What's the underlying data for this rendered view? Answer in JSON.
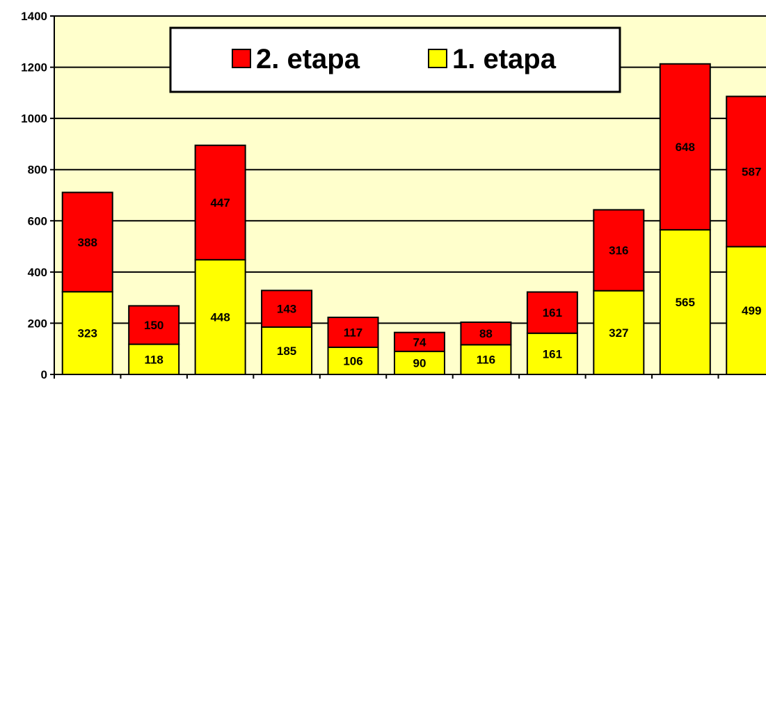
{
  "chart_data": {
    "type": "bar",
    "stacked": true,
    "categories": [
      "",
      "",
      "",
      "",
      "",
      "",
      "",
      "",
      "",
      "",
      ""
    ],
    "series": [
      {
        "name": "1. etapa",
        "color": "#ffff00",
        "values": [
          323,
          118,
          448,
          185,
          106,
          90,
          116,
          161,
          327,
          565,
          499
        ]
      },
      {
        "name": "2. etapa",
        "color": "#ff0000",
        "values": [
          388,
          150,
          447,
          143,
          117,
          74,
          88,
          161,
          316,
          648,
          587
        ]
      }
    ],
    "legend_order": [
      "2. etapa",
      "1. etapa"
    ],
    "legend_position": "top-center",
    "ylim": [
      0,
      1400
    ],
    "yticks": [
      "0",
      "200",
      "400",
      "600",
      "800",
      "1000",
      "1200",
      "1400"
    ],
    "grid": true,
    "plot_background": "#ffffcc",
    "title": "",
    "xlabel": "",
    "ylabel": ""
  }
}
